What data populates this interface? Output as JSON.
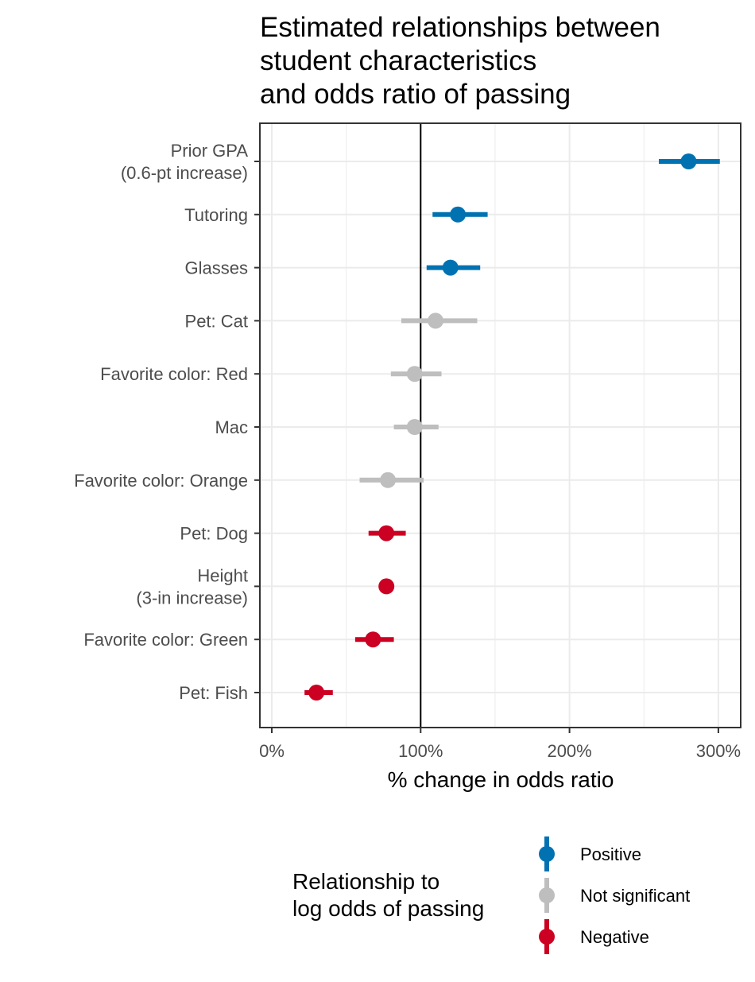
{
  "chart_data": {
    "type": "scatter",
    "subtype": "forest-plot",
    "title": [
      "Estimated relationships between",
      "student characteristics",
      "and odds ratio of passing"
    ],
    "xlabel": "% change in odds ratio",
    "ylabel": "",
    "xlim": [
      -8,
      315
    ],
    "x_ticks": [
      0,
      100,
      200,
      300
    ],
    "x_tick_labels": [
      "0%",
      "100%",
      "200%",
      "300%"
    ],
    "reference_line_x": 100,
    "grid": true,
    "categories": [
      [
        "Prior GPA",
        "(0.6-pt increase)"
      ],
      [
        "Tutoring"
      ],
      [
        "Glasses"
      ],
      [
        "Pet: Cat"
      ],
      [
        "Favorite color: Red"
      ],
      [
        "Mac"
      ],
      [
        "Favorite color: Orange"
      ],
      [
        "Pet: Dog"
      ],
      [
        "Height",
        "(3-in increase)"
      ],
      [
        "Favorite color: Green"
      ],
      [
        "Pet: Fish"
      ]
    ],
    "estimates": [
      280,
      125,
      120,
      110,
      96,
      96,
      78,
      77,
      77,
      68,
      30
    ],
    "lower": [
      260,
      108,
      104,
      87,
      80,
      82,
      59,
      65,
      77,
      56,
      22
    ],
    "upper": [
      301,
      145,
      140,
      138,
      114,
      112,
      102,
      90,
      77,
      82,
      41
    ],
    "relationship": [
      "Positive",
      "Positive",
      "Positive",
      "Not significant",
      "Not significant",
      "Not significant",
      "Not significant",
      "Negative",
      "Negative",
      "Negative",
      "Negative"
    ],
    "colors": {
      "Positive": "#0072b2",
      "Not significant": "#bebebe",
      "Negative": "#cc0022"
    },
    "legend": {
      "title": [
        "Relationship to",
        "log odds of passing"
      ],
      "entries": [
        "Positive",
        "Not significant",
        "Negative"
      ],
      "placement": "bottom"
    }
  }
}
